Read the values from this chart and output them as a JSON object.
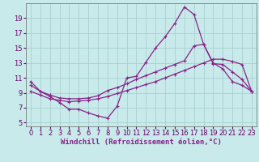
{
  "bg_color": "#c8eaea",
  "grid_color": "#a8d0d0",
  "line_color": "#882288",
  "xlabel": "Windchill (Refroidissement éolien,°C)",
  "xlabel_fontsize": 6.5,
  "tick_fontsize": 6,
  "ylim": [
    4.5,
    21.0
  ],
  "xlim": [
    -0.5,
    23.5
  ],
  "yticks": [
    5,
    7,
    9,
    11,
    13,
    15,
    17,
    19
  ],
  "xticks": [
    0,
    1,
    2,
    3,
    4,
    5,
    6,
    7,
    8,
    9,
    10,
    11,
    12,
    13,
    14,
    15,
    16,
    17,
    18,
    19,
    20,
    21,
    22,
    23
  ],
  "line1_x": [
    0,
    1,
    2,
    3,
    4,
    5,
    6,
    7,
    8,
    9,
    10,
    11,
    12,
    13,
    14,
    15,
    16,
    17,
    18,
    19,
    20,
    21,
    22,
    23
  ],
  "line1_y": [
    10.5,
    9.2,
    8.5,
    7.7,
    6.8,
    6.8,
    6.3,
    5.9,
    5.6,
    7.2,
    11.0,
    11.2,
    13.1,
    15.0,
    16.5,
    18.3,
    20.5,
    19.5,
    15.5,
    13.0,
    12.2,
    10.5,
    10.0,
    9.2
  ],
  "line2_x": [
    0,
    1,
    2,
    3,
    4,
    5,
    6,
    7,
    8,
    9,
    10,
    11,
    12,
    13,
    14,
    15,
    16,
    17,
    18,
    19,
    20,
    21,
    22,
    23
  ],
  "line2_y": [
    10.0,
    9.2,
    8.7,
    8.3,
    8.2,
    8.2,
    8.3,
    8.6,
    9.3,
    9.7,
    10.2,
    10.8,
    11.3,
    11.8,
    12.3,
    12.8,
    13.3,
    15.3,
    15.5,
    12.9,
    12.8,
    11.8,
    10.8,
    9.2
  ],
  "line3_x": [
    0,
    1,
    2,
    3,
    4,
    5,
    6,
    7,
    8,
    9,
    10,
    11,
    12,
    13,
    14,
    15,
    16,
    17,
    18,
    19,
    20,
    21,
    22,
    23
  ],
  "line3_y": [
    9.2,
    8.7,
    8.2,
    8.0,
    7.8,
    7.9,
    8.0,
    8.2,
    8.5,
    8.9,
    9.3,
    9.7,
    10.1,
    10.5,
    11.0,
    11.5,
    12.0,
    12.5,
    13.0,
    13.5,
    13.5,
    13.2,
    12.8,
    9.2
  ]
}
